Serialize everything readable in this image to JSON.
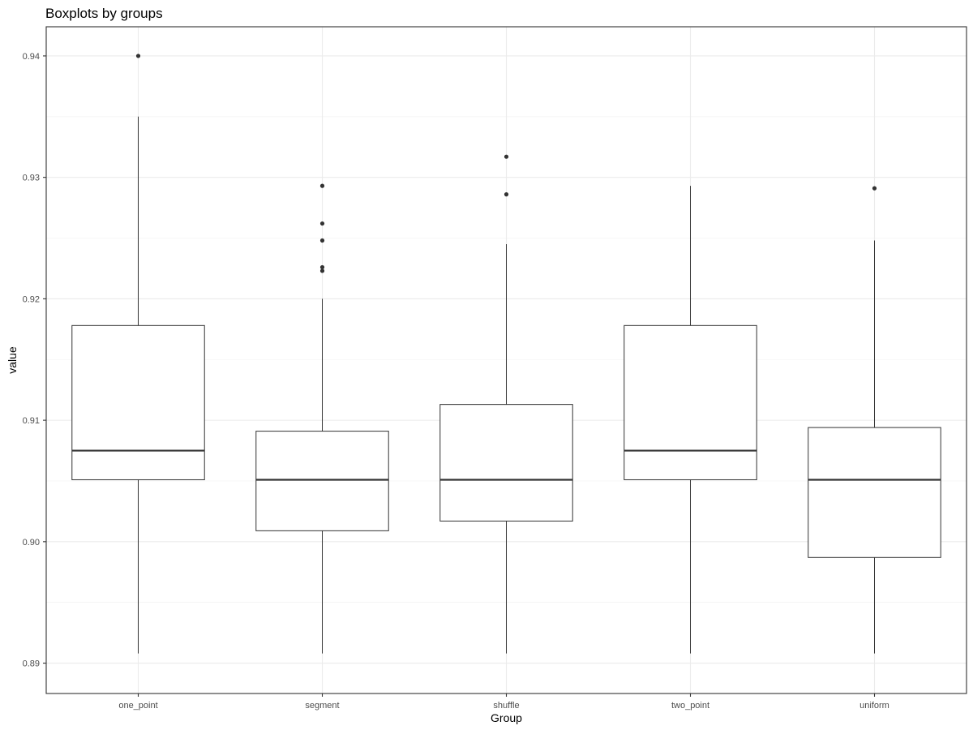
{
  "chart_data": {
    "type": "boxplot",
    "title": "Boxplots by groups",
    "xlabel": "Group",
    "ylabel": "value",
    "ylim": [
      0.8875,
      0.9424
    ],
    "y_ticks": [
      0.89,
      0.9,
      0.91,
      0.92,
      0.93,
      0.94
    ],
    "y_tick_labels": [
      "0.89",
      "0.90",
      "0.91",
      "0.92",
      "0.93",
      "0.94"
    ],
    "grid": true,
    "categories": [
      "one_point",
      "segment",
      "shuffle",
      "two_point",
      "uniform"
    ],
    "boxes": [
      {
        "group": "one_point",
        "whisker_low": 0.8908,
        "q1": 0.9051,
        "median": 0.9075,
        "q3": 0.9178,
        "whisker_high": 0.935,
        "outliers": [
          0.94
        ]
      },
      {
        "group": "segment",
        "whisker_low": 0.8908,
        "q1": 0.9009,
        "median": 0.9051,
        "q3": 0.9091,
        "whisker_high": 0.92,
        "outliers": [
          0.9223,
          0.9226,
          0.9248,
          0.9262,
          0.9293
        ]
      },
      {
        "group": "shuffle",
        "whisker_low": 0.8908,
        "q1": 0.9017,
        "median": 0.9051,
        "q3": 0.9113,
        "whisker_high": 0.9245,
        "outliers": [
          0.9286,
          0.9317
        ]
      },
      {
        "group": "two_point",
        "whisker_low": 0.8908,
        "q1": 0.9051,
        "median": 0.9075,
        "q3": 0.9178,
        "whisker_high": 0.9293,
        "outliers": []
      },
      {
        "group": "uniform",
        "whisker_low": 0.8908,
        "q1": 0.8987,
        "median": 0.9051,
        "q3": 0.9094,
        "whisker_high": 0.9248,
        "outliers": [
          0.9291
        ]
      }
    ]
  }
}
